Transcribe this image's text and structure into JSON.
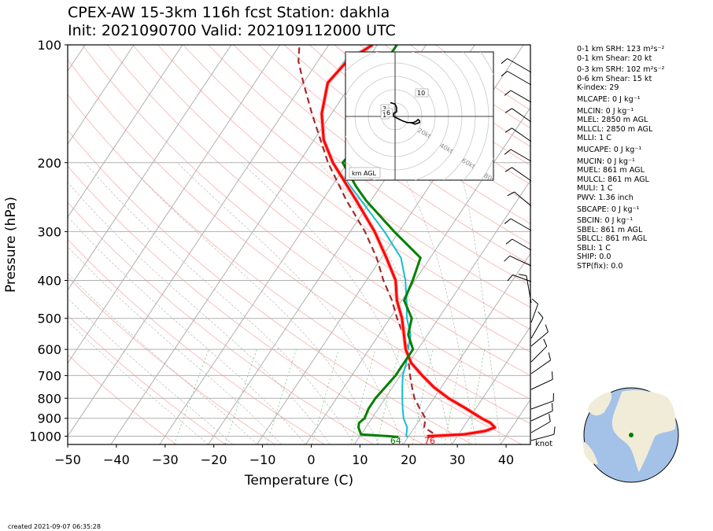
{
  "header": {
    "title_line1": "CPEX-AW 15-3km  116h fcst  Station: dakhla",
    "title_line2": "Init: 2021090700  Valid: 202109112000 UTC"
  },
  "footer": {
    "created": "created 2021-09-07 06:35:28"
  },
  "barb_unit": "knot",
  "stats": [
    {
      "label": "0-1 km SRH",
      "value": "123 m²s⁻²"
    },
    {
      "label": "0-1 km Shear",
      "value": "20 kt"
    },
    {
      "label": "0-3 km SRH",
      "value": "102 m²s⁻²"
    },
    {
      "label": "0-6 km Shear",
      "value": "15 kt"
    },
    {
      "label": "K-index",
      "value": "29"
    },
    {
      "label": "MLCAPE",
      "value": "0 J kg⁻¹"
    },
    {
      "label": "MLCIN",
      "value": "0 J kg⁻¹"
    },
    {
      "label": "MLEL",
      "value": "2850 m AGL"
    },
    {
      "label": "MLLCL",
      "value": "2850 m AGL"
    },
    {
      "label": "MLLI",
      "value": "1 C"
    },
    {
      "label": "MUCAPE",
      "value": "0 J kg⁻¹"
    },
    {
      "label": "MUCIN",
      "value": "0 J kg⁻¹"
    },
    {
      "label": "MUEL",
      "value": "861 m AGL"
    },
    {
      "label": "MULCL",
      "value": "861 m AGL"
    },
    {
      "label": "MULI",
      "value": "1 C"
    },
    {
      "label": "PWV",
      "value": "1.36 inch"
    },
    {
      "label": "SBCAPE",
      "value": "0 J kg⁻¹"
    },
    {
      "label": "SBCIN",
      "value": "0 J kg⁻¹"
    },
    {
      "label": "SBEL",
      "value": "861 m AGL"
    },
    {
      "label": "SBLCL",
      "value": "861 m AGL"
    },
    {
      "label": "SBLI",
      "value": "1 C"
    },
    {
      "label": "SHIP",
      "value": "0.0"
    },
    {
      "label": "STP(fix)",
      "value": "0.0"
    }
  ],
  "chart_data": [
    {
      "type": "line",
      "subtype": "skew-t log-p sounding",
      "xlabel": "Temperature (C)",
      "ylabel": "Pressure (hPa)",
      "xlim": [
        -50,
        45
      ],
      "ylim": [
        1050,
        100
      ],
      "y_scale": "log",
      "x_ticks": [
        -50,
        -40,
        -30,
        -20,
        -10,
        0,
        10,
        20,
        30,
        40
      ],
      "y_ticks": [
        100,
        200,
        300,
        400,
        500,
        600,
        700,
        800,
        900,
        1000
      ],
      "grid": true,
      "surface_labels": {
        "dewpoint_F": "64",
        "temperature_F": "76"
      },
      "colors": {
        "temperature": "#ff0000",
        "dewpoint": "#008000",
        "wetbulb": "#17becf",
        "parcel": "#a52a2a"
      },
      "series": [
        {
          "role": "temperature",
          "points": [
            [
              1005,
              24
            ],
            [
              1000,
              24
            ],
            [
              990,
              31
            ],
            [
              970,
              35
            ],
            [
              950,
              36.5
            ],
            [
              925,
              35
            ],
            [
              900,
              32.5
            ],
            [
              850,
              28
            ],
            [
              800,
              23
            ],
            [
              750,
              18.5
            ],
            [
              700,
              14.5
            ],
            [
              650,
              10.5
            ],
            [
              600,
              7.5
            ],
            [
              500,
              2.5
            ],
            [
              450,
              -1
            ],
            [
              400,
              -4
            ],
            [
              350,
              -9
            ],
            [
              300,
              -15
            ],
            [
              250,
              -23
            ],
            [
              200,
              -33
            ],
            [
              175,
              -38
            ],
            [
              150,
              -42
            ],
            [
              125,
              -45
            ],
            [
              110,
              -44
            ],
            [
              100,
              -41
            ]
          ]
        },
        {
          "role": "dewpoint",
          "points": [
            [
              1005,
              18
            ],
            [
              1000,
              16
            ],
            [
              990,
              10
            ],
            [
              950,
              8.5
            ],
            [
              925,
              8
            ],
            [
              900,
              8.5
            ],
            [
              850,
              8
            ],
            [
              800,
              8
            ],
            [
              750,
              8.5
            ],
            [
              700,
              9
            ],
            [
              650,
              9
            ],
            [
              600,
              9
            ],
            [
              550,
              6
            ],
            [
              500,
              4.5
            ],
            [
              450,
              0.5
            ],
            [
              400,
              -0.5
            ],
            [
              350,
              -2
            ],
            [
              300,
              -11
            ],
            [
              250,
              -21
            ],
            [
              230,
              -25
            ],
            [
              200,
              -31
            ],
            [
              175,
              -30
            ],
            [
              160,
              -34
            ],
            [
              140,
              -36
            ],
            [
              120,
              -36
            ],
            [
              100,
              -36
            ]
          ]
        },
        {
          "role": "wetbulb",
          "points": [
            [
              1005,
              20
            ],
            [
              1000,
              19.5
            ],
            [
              950,
              18.5
            ],
            [
              900,
              16.5
            ],
            [
              850,
              15
            ],
            [
              800,
              13.5
            ],
            [
              750,
              12
            ],
            [
              700,
              10.5
            ],
            [
              650,
              9.5
            ],
            [
              600,
              8
            ],
            [
              550,
              6.5
            ],
            [
              500,
              3.5
            ],
            [
              450,
              1
            ],
            [
              400,
              -2
            ],
            [
              350,
              -6
            ],
            [
              300,
              -13
            ],
            [
              250,
              -22
            ],
            [
              200,
              -33
            ],
            [
              175,
              -38
            ],
            [
              150,
              -42
            ],
            [
              125,
              -45
            ],
            [
              110,
              -44.5
            ],
            [
              100,
              -41.5
            ]
          ]
        },
        {
          "role": "parcel",
          "points": [
            [
              1005,
              27
            ],
            [
              1000,
              26
            ],
            [
              950,
              22
            ],
            [
              900,
              21
            ],
            [
              850,
              18.5
            ],
            [
              800,
              16
            ],
            [
              750,
              14
            ],
            [
              700,
              12
            ],
            [
              650,
              10
            ],
            [
              600,
              8
            ],
            [
              550,
              5
            ],
            [
              500,
              1.5
            ],
            [
              450,
              -2
            ],
            [
              400,
              -6.5
            ],
            [
              350,
              -11
            ],
            [
              300,
              -17
            ],
            [
              250,
              -25
            ],
            [
              200,
              -34
            ],
            [
              150,
              -44
            ],
            [
              125,
              -50
            ],
            [
              110,
              -54
            ],
            [
              100,
              -56
            ]
          ]
        }
      ]
    },
    {
      "type": "scatter",
      "subtype": "hodograph",
      "xlabel": "",
      "ylabel": "",
      "ring_labels": [
        "20kt",
        "40kt",
        "60kt",
        "80kt"
      ],
      "height_labels": [
        "10",
        "3",
        "1",
        "6"
      ],
      "legend_label": "km AGL",
      "points": [
        [
          -3,
          -9
        ],
        [
          0,
          -8
        ],
        [
          1,
          -6
        ],
        [
          1,
          -3
        ],
        [
          -1,
          -2
        ],
        [
          -1,
          0
        ],
        [
          1,
          1
        ],
        [
          3,
          2
        ],
        [
          5,
          3
        ],
        [
          8,
          4
        ],
        [
          10,
          4
        ],
        [
          13,
          5
        ],
        [
          16,
          4
        ],
        [
          16,
          3
        ],
        [
          15,
          2
        ],
        [
          14,
          3
        ],
        [
          12,
          4
        ],
        [
          10,
          4
        ]
      ]
    }
  ]
}
